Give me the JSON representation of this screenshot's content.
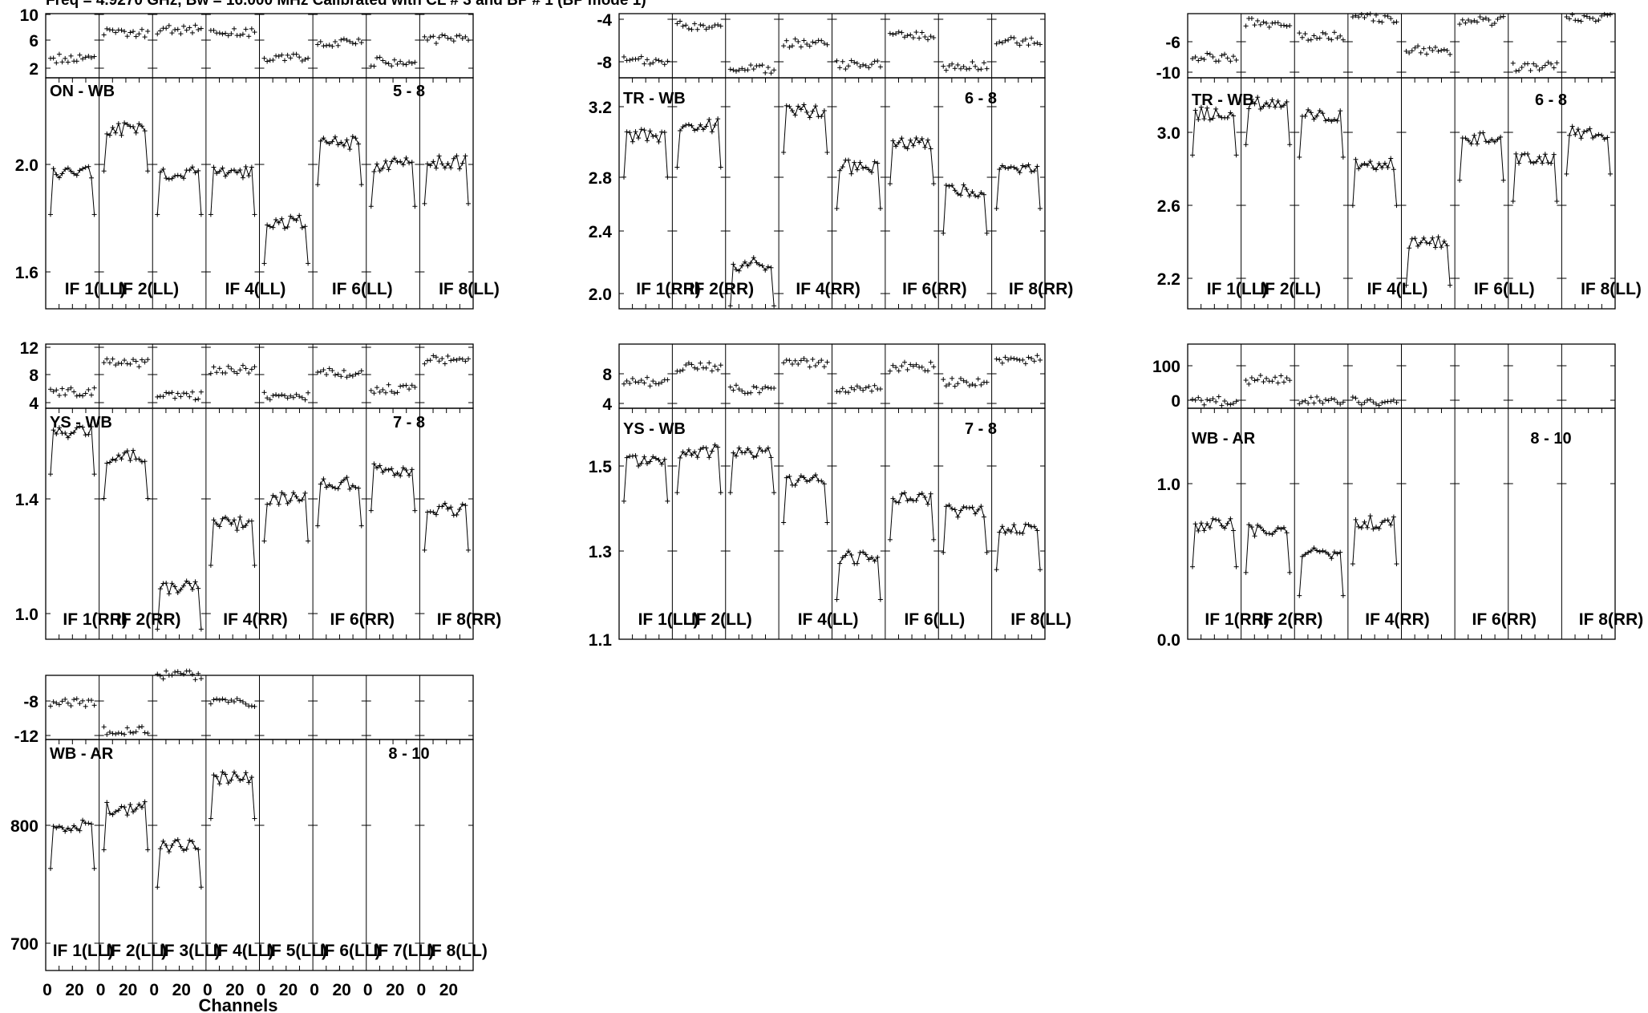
{
  "header": {
    "title": "Freq = 4.9270 GHz, Bw = 16.000 MHz  Calibrated with CL # 3 and BP # 1 (BP mode 1)"
  },
  "x_axis": {
    "label": "Channels",
    "tick_labels": [
      "0",
      "20"
    ]
  },
  "chart_data": [
    {
      "type": "line",
      "baseline": "ON - WB",
      "corner_label": "5 - 8",
      "phase_ticks": [
        "10",
        "6",
        "2"
      ],
      "amp_ticks": [
        "2.0",
        "1.6"
      ],
      "if_labels": [
        "IF 1(LL)",
        "IF 2(LL)",
        "IF 4(LL)",
        "IF 6(LL)",
        "IF 8(LL)"
      ],
      "series": [
        {
          "if": "IF 1",
          "amp": 1.95,
          "phase": 4.0
        },
        {
          "if": "IF 2",
          "amp": 2.11,
          "phase": 8.0
        },
        {
          "if": "IF 3",
          "amp": 1.95,
          "phase": 8.5
        },
        {
          "if": "IF 4",
          "amp": 1.95,
          "phase": 8.0
        },
        {
          "if": "IF 5",
          "amp": 1.77,
          "phase": 4.0
        },
        {
          "if": "IF 6",
          "amp": 2.06,
          "phase": 6.5
        },
        {
          "if": "IF 7",
          "amp": 1.98,
          "phase": 3.5
        },
        {
          "if": "IF 8",
          "amp": 1.99,
          "phase": 7.0
        }
      ]
    },
    {
      "type": "line",
      "baseline": "TR - WB",
      "corner_label": "6 - 8",
      "phase_ticks": [
        "-4",
        "-8"
      ],
      "amp_ticks": [
        "3.2",
        "2.8",
        "2.4",
        "2.0"
      ],
      "if_labels": [
        "IF 1(RR)",
        "IF 2(RR)",
        "IF 4(RR)",
        "IF 6(RR)",
        "IF 8(RR)"
      ],
      "series": [
        {
          "if": "IF 1",
          "amp": 3.0,
          "phase": -7.8
        },
        {
          "if": "IF 2",
          "amp": 3.06,
          "phase": -4.2
        },
        {
          "if": "IF 3",
          "amp": 2.22,
          "phase": -8.6
        },
        {
          "if": "IF 4",
          "amp": 3.15,
          "phase": -6.0
        },
        {
          "if": "IF 5",
          "amp": 2.81,
          "phase": -8.2
        },
        {
          "if": "IF 6",
          "amp": 2.96,
          "phase": -5.2
        },
        {
          "if": "IF 7",
          "amp": 2.66,
          "phase": -8.3
        },
        {
          "if": "IF 8",
          "amp": 2.81,
          "phase": -5.8
        }
      ]
    },
    {
      "type": "line",
      "baseline": "TR - WB",
      "corner_label": "6 - 8",
      "phase_ticks": [
        "-6",
        "-10"
      ],
      "amp_ticks": [
        "3.0",
        "2.6",
        "2.2"
      ],
      "if_labels": [
        "IF 1(LL)",
        "IF 2(LL)",
        "IF 4(LL)",
        "IF 6(LL)",
        "IF 8(LL)"
      ],
      "series": [
        {
          "if": "IF 1",
          "amp": 3.03,
          "phase": -8.8
        },
        {
          "if": "IF 2",
          "amp": 3.08,
          "phase": -5.0
        },
        {
          "if": "IF 3",
          "amp": 3.02,
          "phase": -6.5
        },
        {
          "if": "IF 4",
          "amp": 2.79,
          "phase": -4.5
        },
        {
          "if": "IF 5",
          "amp": 2.41,
          "phase": -8.0
        },
        {
          "if": "IF 6",
          "amp": 2.91,
          "phase": -4.8
        },
        {
          "if": "IF 7",
          "amp": 2.81,
          "phase": -9.8
        },
        {
          "if": "IF 8",
          "amp": 2.94,
          "phase": -4.5
        }
      ]
    },
    {
      "type": "line",
      "baseline": "YS - WB",
      "corner_label": "7 - 8",
      "phase_ticks": [
        "12",
        "8",
        "4"
      ],
      "amp_ticks": [
        "1.4",
        "1.0"
      ],
      "if_labels": [
        "IF 1(RR)",
        "IF 2(RR)",
        "IF 4(RR)",
        "IF 6(RR)",
        "IF 8(RR)"
      ],
      "series": [
        {
          "if": "IF 1",
          "amp": 1.6,
          "phase": 5.5
        },
        {
          "if": "IF 2",
          "amp": 1.52,
          "phase": 10.0
        },
        {
          "if": "IF 3",
          "amp": 1.09,
          "phase": 5.0
        },
        {
          "if": "IF 4",
          "amp": 1.3,
          "phase": 9.0
        },
        {
          "if": "IF 5",
          "amp": 1.38,
          "phase": 5.0
        },
        {
          "if": "IF 6",
          "amp": 1.43,
          "phase": 8.5
        },
        {
          "if": "IF 7",
          "amp": 1.48,
          "phase": 6.0
        },
        {
          "if": "IF 8",
          "amp": 1.35,
          "phase": 10.5
        }
      ]
    },
    {
      "type": "line",
      "baseline": "YS - WB",
      "corner_label": "7 - 8",
      "phase_ticks": [
        "8",
        "4"
      ],
      "amp_ticks": [
        "1.5",
        "1.3",
        "1.1"
      ],
      "if_labels": [
        "IF 1(LL)",
        "IF 2(LL)",
        "IF 4(LL)",
        "IF 6(LL)",
        "IF 8(LL)"
      ],
      "series": [
        {
          "if": "IF 1",
          "amp": 1.48,
          "phase": 6.0
        },
        {
          "if": "IF 2",
          "amp": 1.5,
          "phase": 8.0
        },
        {
          "if": "IF 3",
          "amp": 1.5,
          "phase": 5.0
        },
        {
          "if": "IF 4",
          "amp": 1.43,
          "phase": 8.5
        },
        {
          "if": "IF 5",
          "amp": 1.25,
          "phase": 5.0
        },
        {
          "if": "IF 6",
          "amp": 1.39,
          "phase": 8.0
        },
        {
          "if": "IF 7",
          "amp": 1.36,
          "phase": 6.0
        },
        {
          "if": "IF 8",
          "amp": 1.32,
          "phase": 9.0
        }
      ]
    },
    {
      "type": "line",
      "baseline": "WB - AR",
      "corner_label": "8 - 10",
      "phase_ticks": [
        "100",
        "0"
      ],
      "amp_ticks": [
        "1.0",
        "0.0"
      ],
      "if_labels": [
        "IF 1(RR)",
        "IF 2(RR)",
        "IF 4(RR)",
        "IF 6(RR)",
        "IF 8(RR)"
      ],
      "series": [
        {
          "if": "IF 1",
          "amp": 0.74,
          "phase": 0.0
        },
        {
          "if": "IF 2",
          "amp": 0.7,
          "phase": 60.0
        },
        {
          "if": "IF 3",
          "amp": 0.54,
          "phase": 0.0
        },
        {
          "if": "IF 4",
          "amp": 0.76,
          "phase": 0.0
        }
      ]
    },
    {
      "type": "line",
      "baseline": "WB - AR",
      "corner_label": "8 - 10",
      "phase_ticks": [
        "-8",
        "-12"
      ],
      "amp_ticks": [
        "800",
        "700"
      ],
      "if_labels": [
        "IF 1(LL)",
        "IF 2(LL)",
        "IF 3(LL)",
        "IF 4(LL)",
        "IF 5(LL)",
        "IF 6(LL)",
        "IF 7(LL)",
        "IF 8(LL)"
      ],
      "series": [
        {
          "if": "IF 1",
          "amp": 800,
          "phase": -9.0
        },
        {
          "if": "IF 2",
          "amp": 815,
          "phase": -12.0
        },
        {
          "if": "IF 3",
          "amp": 785,
          "phase": -6.0
        },
        {
          "if": "IF 4",
          "amp": 840,
          "phase": -9.0
        }
      ]
    }
  ]
}
